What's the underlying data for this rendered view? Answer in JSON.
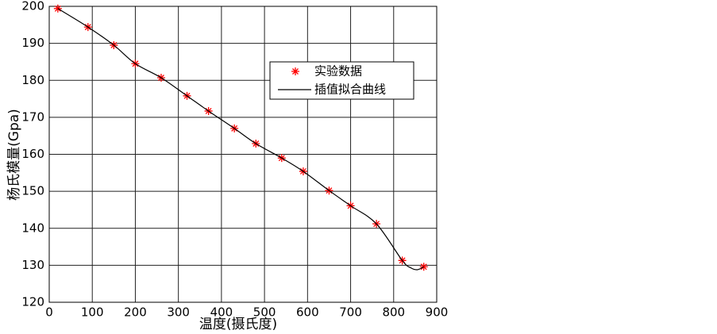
{
  "chart_data": {
    "type": "line",
    "xlabel": "温度(摄氏度)",
    "ylabel": "杨氏模量(Gpa)",
    "xlim": [
      0,
      900
    ],
    "xticks": [
      0,
      100,
      200,
      300,
      400,
      500,
      600,
      700,
      800,
      900
    ],
    "ylim": [
      120,
      200
    ],
    "yticks": [
      120,
      130,
      140,
      150,
      160,
      170,
      180,
      190,
      200
    ],
    "grid": true,
    "legend": "upper right",
    "series": [
      {
        "name": "实验数据",
        "type": "scatter",
        "color": "#ff0000",
        "x": [
          20,
          90,
          150,
          200,
          260,
          320,
          370,
          430,
          480,
          540,
          590,
          650,
          700,
          760,
          820,
          870
        ],
        "values": [
          199.4,
          194.4,
          189.5,
          184.5,
          180.7,
          175.8,
          171.7,
          167,
          162.9,
          159,
          155.4,
          150.2,
          146.1,
          141.2,
          131.3,
          129.6
        ]
      },
      {
        "name": "插值拟合曲线",
        "type": "line",
        "color": "#000000",
        "x": [
          20,
          90,
          150,
          200,
          260,
          320,
          370,
          430,
          480,
          540,
          590,
          650,
          700,
          760,
          820,
          840,
          855,
          870
        ],
        "values": [
          199.4,
          194.4,
          189.5,
          184.5,
          180.7,
          175.8,
          171.7,
          167,
          162.9,
          159,
          155.4,
          150.2,
          146.1,
          141.2,
          131.3,
          129.3,
          128.8,
          129.6
        ]
      }
    ]
  }
}
